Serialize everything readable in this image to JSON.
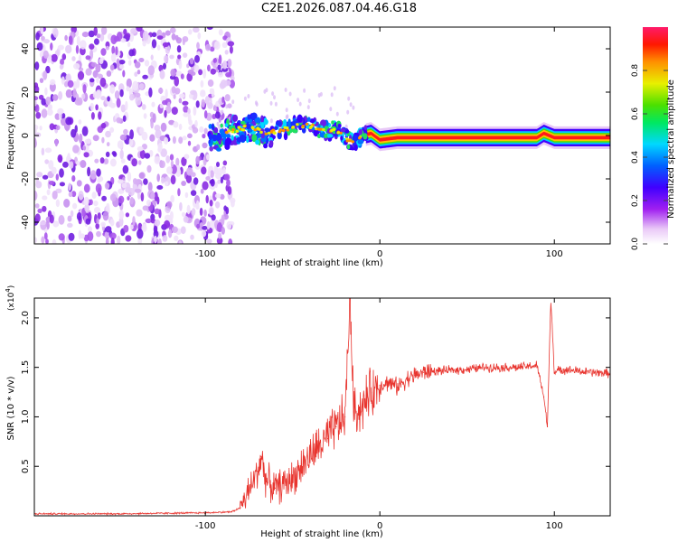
{
  "title": "C2E1.2026.087.04.46.G18",
  "colors": {
    "axis": "#000000",
    "snr_line": "#e8352f",
    "background": "#ffffff"
  },
  "chart_data": [
    {
      "id": "spectrogram",
      "type": "heatmap",
      "xlabel": "Height of straight line (km)",
      "ylabel": "Frequency (Hz)",
      "xlim": [
        -198,
        132
      ],
      "ylim": [
        -50,
        50
      ],
      "xticks": [
        -100,
        0,
        100
      ],
      "yticks": [
        -40,
        -20,
        0,
        20,
        40
      ],
      "grid": false,
      "colorbar": {
        "label": "Normalized spectral amplitude",
        "range": [
          0.0,
          1.0
        ],
        "ticks": [
          0.0,
          0.2,
          0.4,
          0.6,
          0.8
        ],
        "colormap": "rainbow (white-magenta-purple-blue-cyan-green-yellow-orange-red-pink)"
      },
      "carrier_track": {
        "height_km": [
          -95,
          -85,
          -75,
          -65,
          -55,
          -45,
          -38,
          -30,
          -25,
          -20,
          -15,
          -10,
          -5,
          0,
          10,
          20,
          40,
          60,
          80,
          90,
          94,
          100,
          132
        ],
        "freq_hz": [
          -3,
          2,
          4,
          1,
          3,
          5,
          4,
          2,
          3,
          -1,
          -3,
          0,
          1,
          -2,
          -1,
          -1,
          -1,
          -1,
          -1,
          -1,
          1,
          -1,
          -1
        ]
      },
      "noise_region_km": [
        -198,
        -90
      ]
    },
    {
      "id": "snr",
      "type": "line",
      "xlabel": "Height of straight line (km)",
      "ylabel": "SNR (10 * v/v)",
      "y_multiplier": "(x10^4)",
      "y_multiplier_base": "(x10",
      "y_multiplier_exp": "4",
      "y_multiplier_close": ")",
      "xlim": [
        -198,
        132
      ],
      "ylim": [
        0,
        2.2
      ],
      "xticks": [
        -100,
        0,
        100
      ],
      "yticks": [
        0.5,
        1.0,
        1.5,
        2.0
      ],
      "ytick_labels": [
        "0.5",
        "1.0",
        "1.5",
        "2.0"
      ],
      "grid": false,
      "series": [
        {
          "name": "SNR",
          "x": [
            -198,
            -150,
            -100,
            -85,
            -80,
            -75,
            -70,
            -68,
            -65,
            -60,
            -55,
            -50,
            -45,
            -40,
            -35,
            -30,
            -25,
            -20,
            -17,
            -15,
            -10,
            -5,
            0,
            5,
            10,
            15,
            20,
            25,
            30,
            40,
            50,
            60,
            70,
            80,
            90,
            94,
            96,
            98,
            100,
            105,
            110,
            120,
            132
          ],
          "values": [
            0.02,
            0.02,
            0.03,
            0.04,
            0.08,
            0.25,
            0.45,
            0.6,
            0.35,
            0.28,
            0.32,
            0.38,
            0.5,
            0.6,
            0.7,
            0.78,
            0.9,
            1.0,
            2.2,
            1.05,
            1.1,
            1.25,
            1.32,
            1.35,
            1.3,
            1.38,
            1.42,
            1.45,
            1.46,
            1.47,
            1.48,
            1.5,
            1.5,
            1.5,
            1.52,
            1.2,
            0.9,
            2.2,
            1.45,
            1.48,
            1.47,
            1.45,
            1.44
          ]
        }
      ]
    }
  ]
}
